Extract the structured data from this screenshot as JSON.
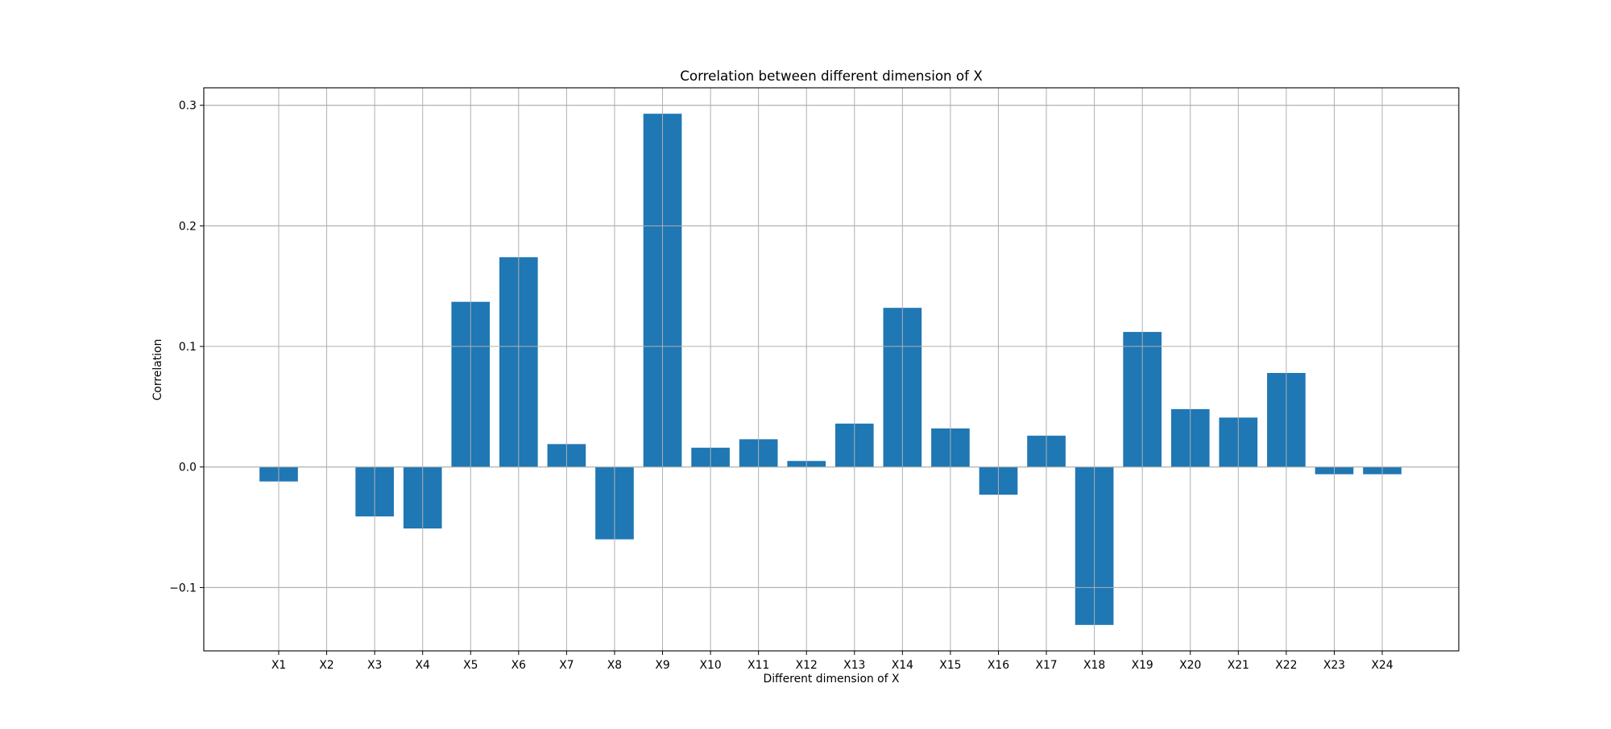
{
  "chart_data": {
    "type": "bar",
    "title": "Correlation between different dimension of X",
    "xlabel": "Different dimension of X",
    "ylabel": "Correlation",
    "categories": [
      "X1",
      "X2",
      "X3",
      "X4",
      "X5",
      "X6",
      "X7",
      "X8",
      "X9",
      "X10",
      "X11",
      "X12",
      "X13",
      "X14",
      "X15",
      "X16",
      "X17",
      "X18",
      "X19",
      "X20",
      "X21",
      "X22",
      "X23",
      "X24"
    ],
    "values": [
      -0.012,
      0.0,
      -0.041,
      -0.051,
      0.137,
      0.174,
      0.019,
      -0.06,
      0.293,
      0.016,
      0.023,
      0.005,
      0.036,
      0.132,
      0.032,
      -0.023,
      0.026,
      -0.131,
      0.112,
      0.048,
      0.041,
      0.078,
      -0.006,
      -0.006
    ],
    "ylim": [
      -0.1525,
      0.3145
    ],
    "yticks": [
      -0.1,
      0.0,
      0.1,
      0.2,
      0.3
    ],
    "ytick_labels": [
      "−0.1",
      "0.0",
      "0.1",
      "0.2",
      "0.3"
    ],
    "grid": true,
    "bar_color": "#1f77b4",
    "grid_color": "#b0b0b0"
  }
}
